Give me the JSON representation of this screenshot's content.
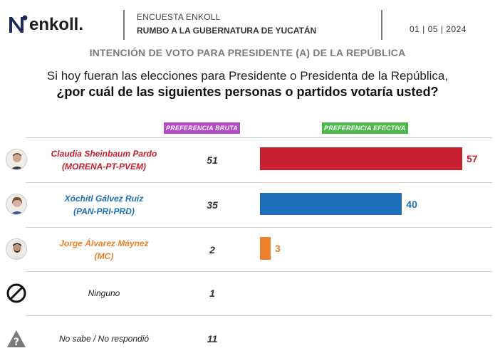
{
  "header": {
    "logo_text": "enkoll.",
    "survey_label": "ENCUESTA ENKOLL",
    "survey_title": "RUMBO A LA GUBERNATURA DE YUCATÁN",
    "date": "01 | 05 | 2024"
  },
  "subtitle": "INTENCIÓN DE VOTO PARA PRESIDENTE (A) DE LA REPÚBLICA",
  "question_line1": "Si hoy fueran las elecciones para Presidente o Presidenta de la República,",
  "question_line2": "¿por cuál de las siguientes personas o partidos votaría usted?",
  "columns": {
    "bruta": "PREFERENCIA BRUTA",
    "efectiva": "PREFERENCIA EFECTIVA"
  },
  "colors": {
    "morena": "#c8202f",
    "pan": "#1e6fb8",
    "mc": "#f07f2c",
    "bruta_header": "#b24bc7",
    "efectiva_header": "#4cb84a"
  },
  "icons": {
    "ninguno": "prohibited-icon",
    "no_sabe": "warning-icon"
  },
  "chart_data": {
    "type": "bar",
    "title": "INTENCIÓN DE VOTO PARA PRESIDENTE (A) DE LA REPÚBLICA",
    "categories": [
      "Claudia Sheinbaum Pardo (MORENA-PT-PVEM)",
      "Xóchitl Gálvez Ruiz (PAN-PRI-PRD)",
      "Jorge Álvarez Máynez (MC)",
      "Ninguno",
      "No sabe / No respondió"
    ],
    "series": [
      {
        "name": "PREFERENCIA BRUTA",
        "values": [
          51,
          35,
          2,
          1,
          11
        ]
      },
      {
        "name": "PREFERENCIA EFECTIVA",
        "values": [
          57,
          40,
          3,
          null,
          null
        ]
      }
    ],
    "orientation": "horizontal",
    "xlim": [
      0,
      57
    ]
  },
  "candidates": [
    {
      "name": "Claudia Sheinbaum Pardo",
      "party": "(MORENA-PT-PVEM)",
      "bruta": "51",
      "efectiva": 57,
      "efectiva_label": "57",
      "color": "#c8202f"
    },
    {
      "name": "Xóchitl Gálvez Ruiz",
      "party": "(PAN-PRI-PRD)",
      "bruta": "35",
      "efectiva": 40,
      "efectiva_label": "40",
      "color": "#1e6fb8"
    },
    {
      "name": "Jorge Álvarez Máynez",
      "party": "(MC)",
      "bruta": "2",
      "efectiva": 3,
      "efectiva_label": "3",
      "color": "#f07f2c"
    }
  ],
  "others": [
    {
      "label": "Ninguno",
      "bruta": "1"
    },
    {
      "label": "No sabe / No respondió",
      "bruta": "11"
    }
  ]
}
